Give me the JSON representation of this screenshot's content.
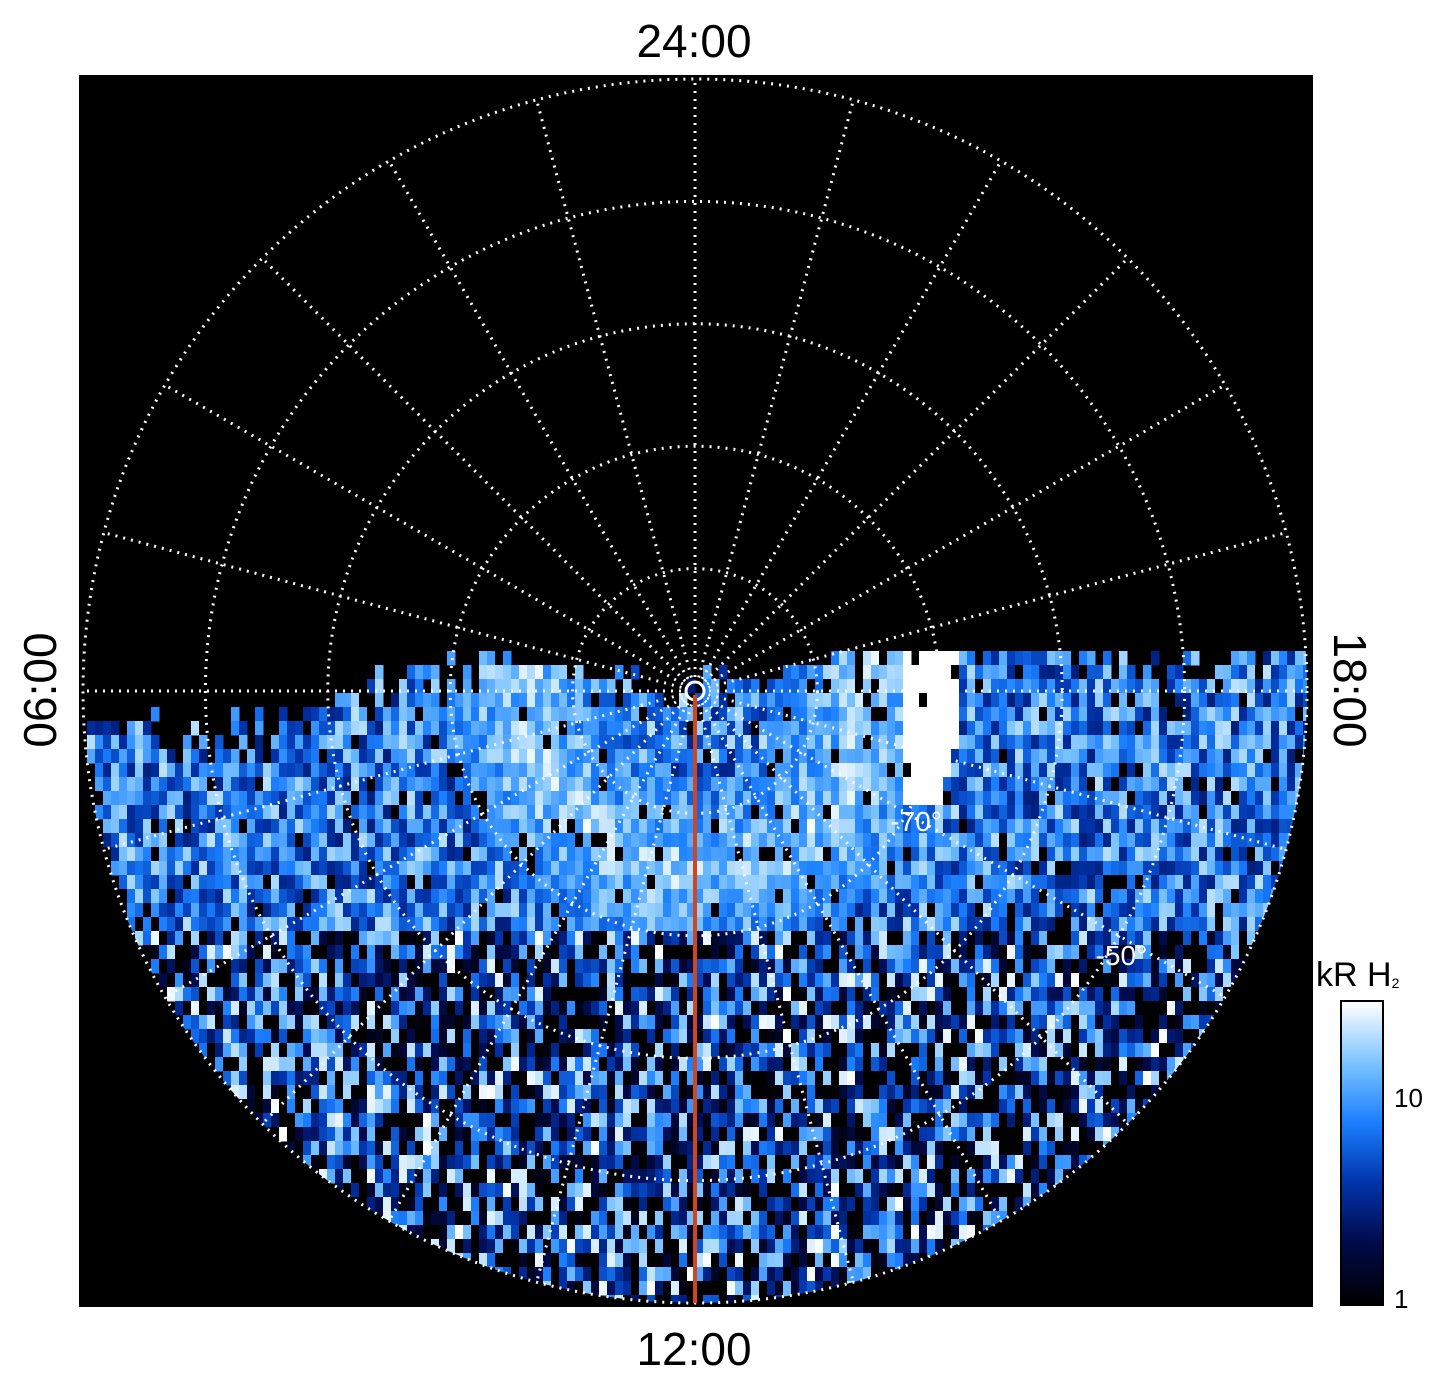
{
  "chart_data": {
    "type": "heatmap",
    "title": "",
    "projection": "polar",
    "local_time_labels": {
      "top": "24:00",
      "bottom": "12:00",
      "left": "06:00",
      "right": "18:00"
    },
    "latitude_labels": [
      {
        "text": "-70°",
        "latitude": -70
      },
      {
        "text": "-50°",
        "latitude": -50
      }
    ],
    "latitude_circles": [
      -80,
      -70,
      -60,
      -50,
      -40
    ],
    "meridians_hours": [
      0,
      1,
      2,
      3,
      4,
      5,
      6,
      7,
      8,
      9,
      10,
      11,
      12,
      13,
      14,
      15,
      16,
      17,
      18,
      19,
      20,
      21,
      22,
      23
    ],
    "grid": "dotted",
    "colorbar": {
      "title": "kR H",
      "title_subscript": "2",
      "scale": "log",
      "range": [
        1,
        30
      ],
      "ticks": [
        "10",
        "1"
      ],
      "tick_values": [
        10,
        1
      ],
      "colors": [
        "#000000",
        "#000a4a",
        "#0033aa",
        "#1a7fff",
        "#7dc4ff",
        "#ffffff"
      ]
    },
    "reference_line": {
      "color": "#d2461e",
      "local_time": "12:00"
    },
    "auroral_band": {
      "latitude_center": -76,
      "brightest_local_time": "16:30",
      "peak_kR": 30
    }
  }
}
